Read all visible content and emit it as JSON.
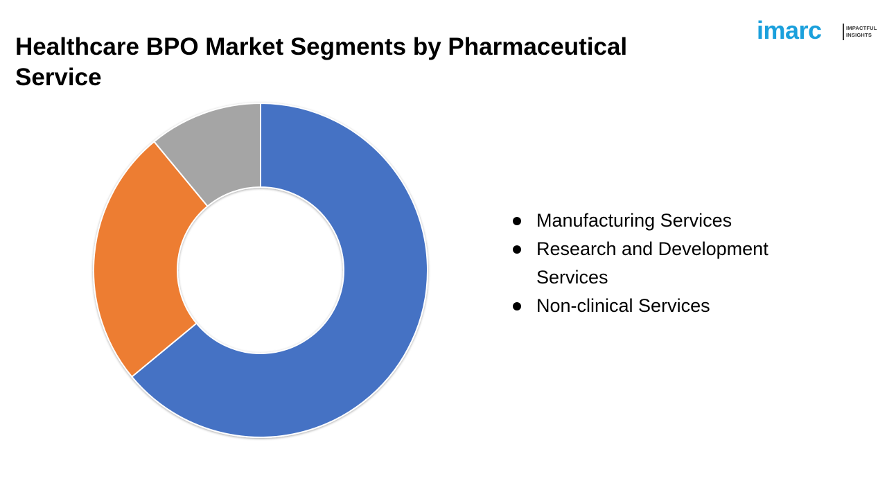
{
  "header": {
    "title": "Healthcare BPO Market Segments by Pharmaceutical Service"
  },
  "logo": {
    "wordmark": "imarc",
    "tagline_line1": "IMPACTFUL",
    "tagline_line2": "INSIGHTS",
    "color": "#1BA0DC"
  },
  "chart_data": {
    "type": "pie",
    "style": "donut",
    "title": "Healthcare BPO Market Segments by Pharmaceutical Service",
    "categories": [
      "Manufacturing Services",
      "Research and Development Services",
      "Non-clinical Services"
    ],
    "values": [
      64,
      25,
      11
    ],
    "colors": [
      "#4472C4",
      "#ED7D31",
      "#A5A5A5"
    ],
    "data_labels": "none",
    "legend_position": "right"
  },
  "legend": {
    "items": [
      "Manufacturing Services",
      "Research and Development Services",
      "Non-clinical Services"
    ]
  }
}
